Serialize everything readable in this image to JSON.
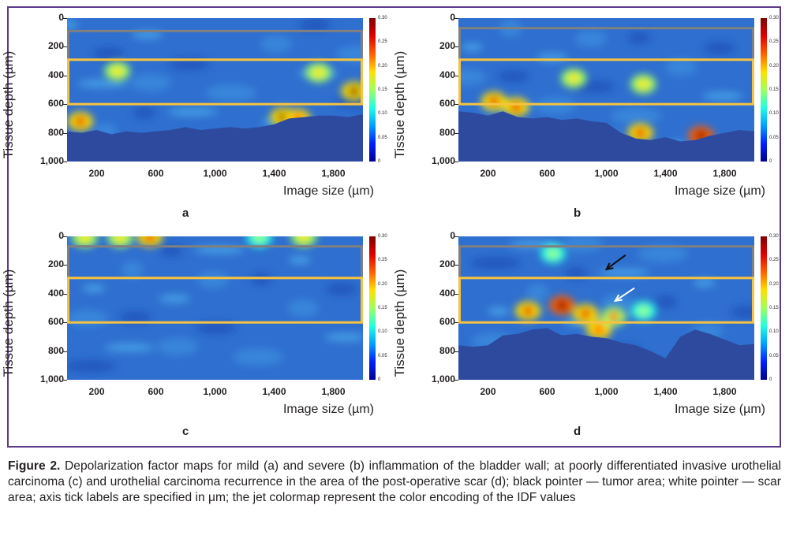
{
  "panels": [
    {
      "id": "a",
      "label": "a",
      "ylabel": "Tissue depth (µm)",
      "xlabel": "Image size (µm)",
      "y_ticks": [
        "0",
        "200",
        "400",
        "600",
        "800",
        "1,000"
      ],
      "x_ticks": [
        "200",
        "600",
        "1,000",
        "1,400",
        "1,800"
      ],
      "colorbar_ticks": [
        "0.30",
        "0.25",
        "0.20",
        "0.15",
        "0.10",
        "0.05",
        "0"
      ],
      "gray_roi_depth_um": [
        90,
        290
      ],
      "yellow_roi_depth_um": [
        290,
        600
      ],
      "tissue_bottom_um": [
        790,
        800,
        780,
        810,
        790,
        800,
        790,
        780,
        760,
        780,
        770,
        760,
        770,
        760,
        740,
        700,
        690,
        680,
        680,
        690,
        670
      ],
      "hot_spots": [
        {
          "x_um": 90,
          "depth_um": 720,
          "level": 0.25
        },
        {
          "x_um": 340,
          "depth_um": 370,
          "level": 0.14
        },
        {
          "x_um": 1460,
          "depth_um": 690,
          "level": 0.28
        },
        {
          "x_um": 1560,
          "depth_um": 700,
          "level": 0.22
        },
        {
          "x_um": 1940,
          "depth_um": 510,
          "level": 0.28
        },
        {
          "x_um": 1700,
          "depth_um": 380,
          "level": 0.14
        }
      ]
    },
    {
      "id": "b",
      "label": "b",
      "ylabel": "Tissue depth (µm)",
      "xlabel": "Image size (µm)",
      "y_ticks": [
        "0",
        "200",
        "400",
        "600",
        "800",
        "1,000"
      ],
      "x_ticks": [
        "200",
        "600",
        "1,000",
        "1,400",
        "1,800"
      ],
      "colorbar_ticks": [
        "0.30",
        "0.25",
        "0.20",
        "0.15",
        "0.10",
        "0.05",
        "0"
      ],
      "gray_roi_depth_um": [
        70,
        290
      ],
      "yellow_roi_depth_um": [
        290,
        600
      ],
      "tissue_bottom_um": [
        650,
        660,
        680,
        650,
        690,
        700,
        690,
        710,
        700,
        720,
        730,
        800,
        840,
        850,
        830,
        860,
        850,
        820,
        800,
        780,
        790
      ],
      "hot_spots": [
        {
          "x_um": 240,
          "depth_um": 580,
          "level": 0.27
        },
        {
          "x_um": 390,
          "depth_um": 620,
          "level": 0.24
        },
        {
          "x_um": 1230,
          "depth_um": 800,
          "level": 0.27
        },
        {
          "x_um": 1640,
          "depth_um": 820,
          "level": 0.3
        },
        {
          "x_um": 780,
          "depth_um": 420,
          "level": 0.13
        },
        {
          "x_um": 1250,
          "depth_um": 460,
          "level": 0.16
        }
      ]
    },
    {
      "id": "c",
      "label": "c",
      "ylabel": "Tissue depth (µm)",
      "xlabel": "Image size (µm)",
      "y_ticks": [
        "0",
        "200",
        "400",
        "600",
        "800",
        "1,000"
      ],
      "x_ticks": [
        "200",
        "600",
        "1,000",
        "1,400",
        "1,800"
      ],
      "colorbar_ticks": [
        "0.30",
        "0.25",
        "0.20",
        "0.15",
        "0.10",
        "0.05",
        "0"
      ],
      "gray_roi_depth_um": [
        70,
        290
      ],
      "yellow_roi_depth_um": [
        290,
        600
      ],
      "tissue_bottom_um": [
        1000,
        1000,
        1000,
        1000,
        1000,
        1000,
        1000,
        1000,
        1000,
        1000,
        1000,
        1000,
        1000,
        1000,
        1000,
        1000,
        1000,
        1000,
        1000,
        1000,
        1000
      ],
      "hot_spots": [
        {
          "x_um": 120,
          "depth_um": 10,
          "level": 0.16
        },
        {
          "x_um": 360,
          "depth_um": 10,
          "level": 0.14
        },
        {
          "x_um": 560,
          "depth_um": 5,
          "level": 0.24
        },
        {
          "x_um": 1600,
          "depth_um": 5,
          "level": 0.17
        },
        {
          "x_um": 1300,
          "depth_um": 10,
          "level": 0.12
        }
      ]
    },
    {
      "id": "d",
      "label": "d",
      "ylabel": "Tissue depth (µm)",
      "xlabel": "Image size (µm)",
      "y_ticks": [
        "0",
        "200",
        "400",
        "600",
        "800",
        "1,000"
      ],
      "x_ticks": [
        "200",
        "600",
        "1,000",
        "1,400",
        "1,800"
      ],
      "colorbar_ticks": [
        "0.30",
        "0.25",
        "0.20",
        "0.15",
        "0.10",
        "0.05",
        "0"
      ],
      "gray_roi_depth_um": [
        70,
        290
      ],
      "yellow_roi_depth_um": [
        290,
        600
      ],
      "tissue_bottom_um": [
        760,
        770,
        760,
        690,
        680,
        650,
        640,
        690,
        680,
        700,
        710,
        740,
        760,
        800,
        850,
        700,
        650,
        680,
        720,
        760,
        750
      ],
      "hot_spots": [
        {
          "x_um": 470,
          "depth_um": 520,
          "level": 0.27
        },
        {
          "x_um": 700,
          "depth_um": 480,
          "level": 0.3
        },
        {
          "x_um": 860,
          "depth_um": 540,
          "level": 0.26
        },
        {
          "x_um": 950,
          "depth_um": 650,
          "level": 0.22
        },
        {
          "x_um": 1050,
          "depth_um": 560,
          "level": 0.18
        },
        {
          "x_um": 1250,
          "depth_um": 520,
          "level": 0.12
        },
        {
          "x_um": 640,
          "depth_um": 120,
          "level": 0.12
        }
      ],
      "pointers": [
        {
          "name": "black-pointer",
          "color": "#111111",
          "from": [
            1130,
            130
          ],
          "to": [
            1000,
            230
          ]
        },
        {
          "name": "white-pointer",
          "color": "#ffffff",
          "from": [
            1190,
            360
          ],
          "to": [
            1060,
            450
          ]
        }
      ]
    }
  ],
  "colors": {
    "frame": "#5b3a8a",
    "gray_roi": "#808080",
    "yellow_roi": "#f5c242",
    "background_blue": "#2e4a9e"
  },
  "caption": {
    "label": "Figure 2.",
    "text": " Depolarization factor maps for mild (a) and severe (b) inflammation of the bladder wall; at poorly differentiated invasive urothelial carcinoma (c) and urothelial carcinoma recurrence in the area of the post-operative scar (d); black pointer — tumor area; white pointer — scar area; axis tick labels are specified in μm; the jet colormap represent the color encoding of the IDF values"
  }
}
